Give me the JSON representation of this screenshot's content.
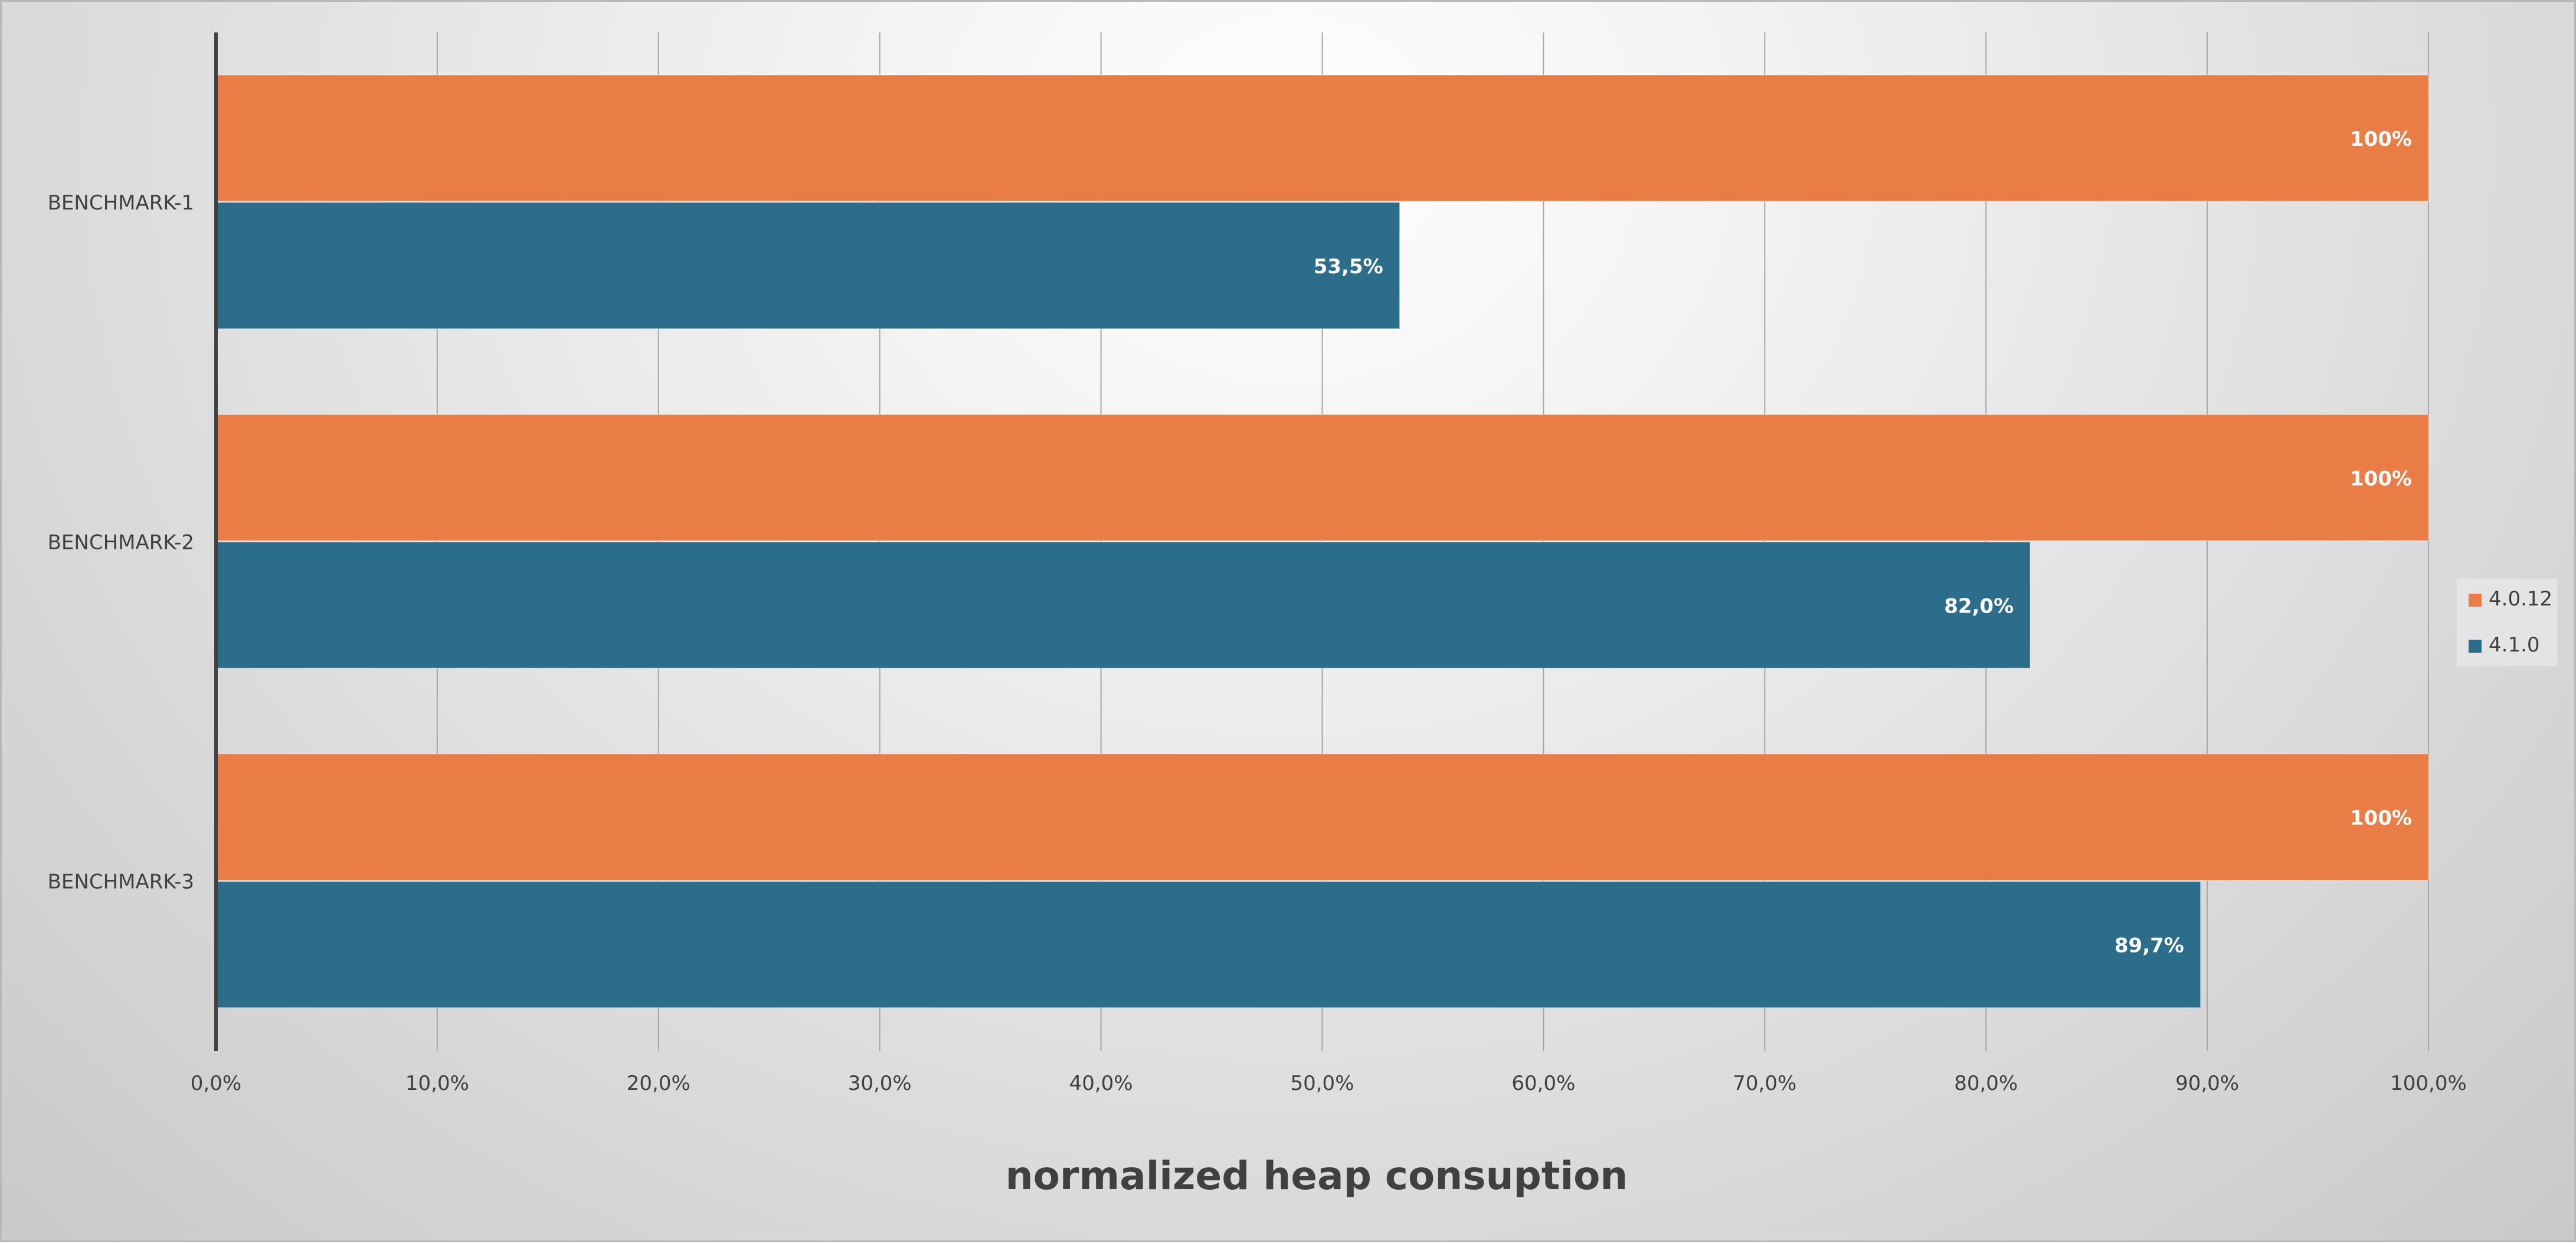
{
  "chart_data": {
    "type": "bar",
    "orientation": "horizontal",
    "categories": [
      "BENCHMARK-1",
      "BENCHMARK-2",
      "BENCHMARK-3"
    ],
    "series": [
      {
        "name": "4.0.12",
        "color": "#ea7d46",
        "values": [
          100,
          100,
          100
        ],
        "labels": [
          "100%",
          "100%",
          "100%"
        ]
      },
      {
        "name": "4.1.0",
        "color": "#2c6d8c",
        "values": [
          53.5,
          82.0,
          89.7
        ],
        "labels": [
          "53,5%",
          "82,0%",
          "89,7%"
        ]
      }
    ],
    "xlim": [
      0,
      100
    ],
    "xticks": [
      0,
      10,
      20,
      30,
      40,
      50,
      60,
      70,
      80,
      90,
      100
    ],
    "xtick_labels": [
      "0,0%",
      "10,0%",
      "20,0%",
      "30,0%",
      "40,0%",
      "50,0%",
      "60,0%",
      "70,0%",
      "80,0%",
      "90,0%",
      "100,0%"
    ],
    "xlabel": "normalized heap consuption",
    "grid": "vertical",
    "legend_position": "right"
  }
}
